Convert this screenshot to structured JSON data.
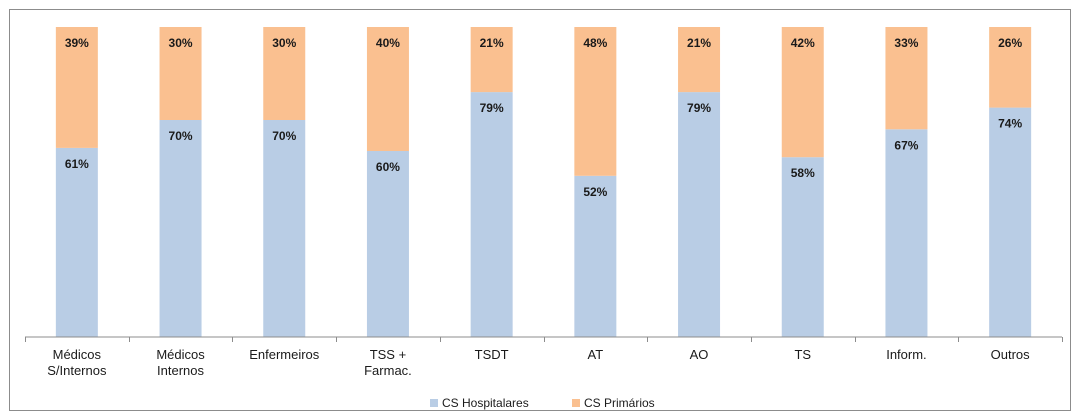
{
  "chart_data": {
    "type": "bar",
    "stacked": true,
    "percent": true,
    "categories": [
      "Médicos S/Internos",
      "Médicos Internos",
      "Enfermeiros",
      "TSS + Farmac.",
      "TSDT",
      "AT",
      "AO",
      "TS",
      "Inform.",
      "Outros"
    ],
    "category_lines": [
      [
        "Médicos",
        "S/Internos"
      ],
      [
        "Médicos",
        "Internos"
      ],
      [
        "Enfermeiros"
      ],
      [
        "TSS +",
        "Farmac."
      ],
      [
        "TSDT"
      ],
      [
        "AT"
      ],
      [
        "AO"
      ],
      [
        "TS"
      ],
      [
        "Inform."
      ],
      [
        "Outros"
      ]
    ],
    "series": [
      {
        "name": "CS Hospitalares",
        "color": "#b9cde5",
        "values": [
          61,
          70,
          70,
          60,
          79,
          52,
          79,
          58,
          67,
          74
        ],
        "labels": [
          "61%",
          "70%",
          "70%",
          "60%",
          "79%",
          "52%",
          "79%",
          "58%",
          "67%",
          "74%"
        ]
      },
      {
        "name": "CS Primários",
        "color": "#fac090",
        "values": [
          39,
          30,
          30,
          40,
          21,
          48,
          21,
          42,
          33,
          26
        ],
        "labels": [
          "39%",
          "30%",
          "30%",
          "40%",
          "21%",
          "48%",
          "21%",
          "42%",
          "33%",
          "26%"
        ]
      }
    ],
    "ylim": [
      0,
      100
    ],
    "title": "",
    "xlabel": "",
    "ylabel": "",
    "grid": false,
    "legend_position": "bottom"
  }
}
